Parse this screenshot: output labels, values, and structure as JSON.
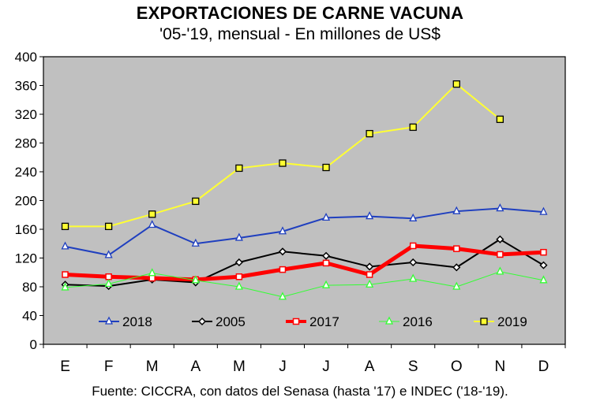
{
  "chart_data": {
    "type": "line",
    "title": "EXPORTACIONES DE CARNE VACUNA",
    "subtitle": "'05-'19, mensual - En millones de US$",
    "source": "Fuente: CICCRA, con datos del Senasa (hasta '17) e INDEC ('18-'19).",
    "xlabel": "",
    "ylabel": "",
    "ylim": [
      0,
      400
    ],
    "yticks": [
      0,
      40,
      80,
      120,
      160,
      200,
      240,
      280,
      320,
      360,
      400
    ],
    "categories": [
      "E",
      "F",
      "M",
      "A",
      "M",
      "J",
      "J",
      "A",
      "S",
      "O",
      "N",
      "D"
    ],
    "grid": false,
    "background_color": "#c0c0c0",
    "legend_position": "bottom-inside",
    "series": [
      {
        "name": "2018",
        "color": "#1f3fbf",
        "marker": "triangle-open",
        "line_width": 2,
        "values": [
          136,
          124,
          166,
          140,
          148,
          157,
          176,
          178,
          175,
          185,
          189,
          184
        ]
      },
      {
        "name": "2005",
        "color": "#000000",
        "marker": "diamond-open",
        "line_width": 2,
        "values": [
          83,
          81,
          90,
          86,
          114,
          129,
          123,
          108,
          114,
          107,
          146,
          110
        ]
      },
      {
        "name": "2017",
        "color": "#ff0000",
        "marker": "square-open",
        "line_width": 5,
        "values": [
          97,
          94,
          92,
          90,
          94,
          104,
          113,
          97,
          137,
          133,
          125,
          128
        ]
      },
      {
        "name": "2016",
        "color": "#33ff33",
        "marker": "triangle-open",
        "line_width": 1,
        "values": [
          79,
          84,
          99,
          89,
          80,
          66,
          82,
          83,
          91,
          80,
          101,
          89
        ]
      },
      {
        "name": "2019",
        "color": "#ffff33",
        "marker": "square-filled",
        "line_width": 2,
        "values": [
          164,
          164,
          181,
          199,
          245,
          252,
          246,
          293,
          302,
          362,
          313,
          null
        ]
      }
    ]
  }
}
